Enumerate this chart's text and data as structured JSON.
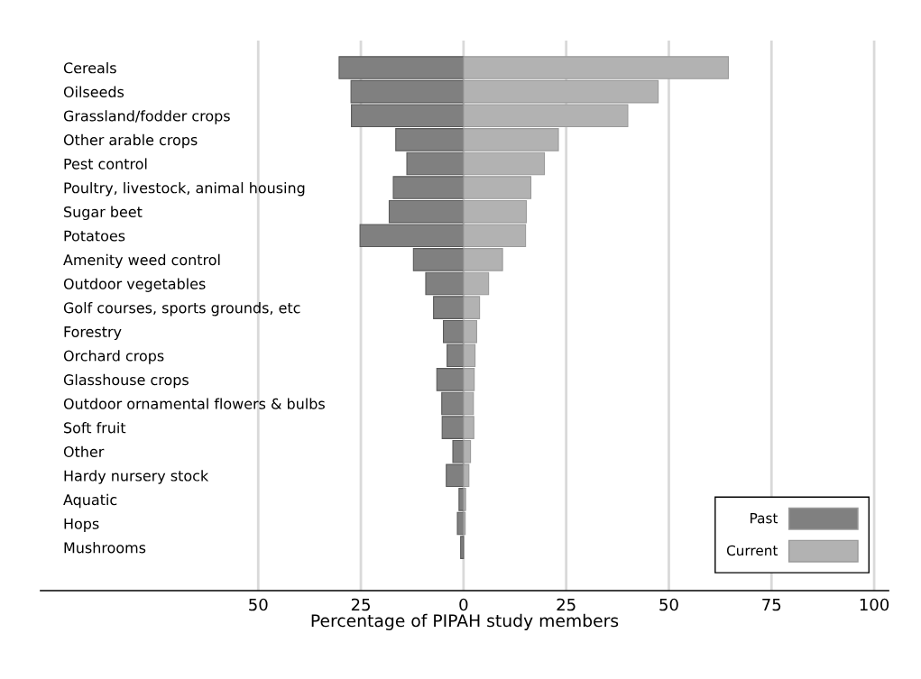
{
  "chart_data": {
    "type": "bar",
    "orientation": "horizontal",
    "xlabel": "Percentage of PIPAH study members",
    "categories": [
      "Cereals",
      "Oilseeds",
      "Grassland/fodder crops",
      "Other arable crops",
      "Pest control",
      "Poultry, livestock, animal housing",
      "Sugar beet",
      "Potatoes",
      "Amenity weed control",
      "Outdoor vegetables",
      "Golf courses, sports grounds, etc",
      "Forestry",
      "Orchard crops",
      "Glasshouse crops",
      "Outdoor ornamental flowers & bulbs",
      "Soft fruit",
      "Other",
      "Hardy nursery stock",
      "Aquatic",
      "Hops",
      "Mushrooms"
    ],
    "series": [
      {
        "name": "Past",
        "color": "#808080",
        "values": [
          -30.3,
          -27.4,
          -27.3,
          -16.5,
          -13.8,
          -17.1,
          -18.1,
          -25.2,
          -12.2,
          -9.2,
          -7.3,
          -4.9,
          -4.0,
          -6.5,
          -5.3,
          -5.2,
          -2.6,
          -4.2,
          -1.1,
          -1.5,
          -0.7
        ]
      },
      {
        "name": "Current",
        "color": "#b2b2b2",
        "values": [
          64.5,
          47.4,
          40.0,
          23.1,
          19.7,
          16.4,
          15.3,
          15.1,
          9.5,
          6.1,
          3.9,
          3.2,
          2.8,
          2.6,
          2.4,
          2.5,
          1.7,
          1.3,
          0.5,
          0.4,
          null
        ]
      }
    ],
    "xlim": [
      -103,
      103.5
    ],
    "xticks": [
      {
        "value": -50,
        "label": "50"
      },
      {
        "value": -25,
        "label": "25"
      },
      0,
      25,
      50,
      75,
      100
    ],
    "stacked": true,
    "grid": "x",
    "legend": "bottom right"
  }
}
